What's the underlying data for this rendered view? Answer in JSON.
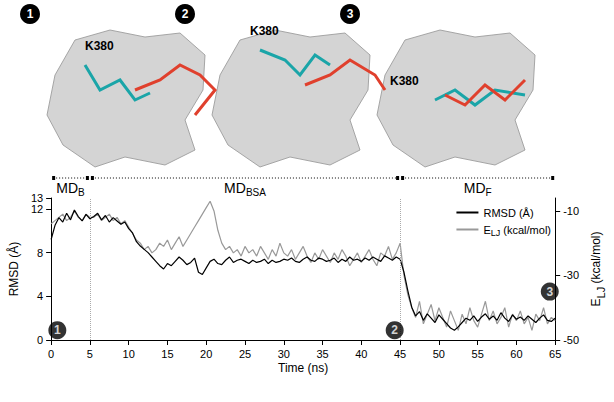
{
  "panels": [
    {
      "number": "1",
      "label": "K380"
    },
    {
      "number": "2",
      "label": "K380"
    },
    {
      "number": "3",
      "label": "K380"
    }
  ],
  "chart_data": {
    "type": "line",
    "xlabel": "Time (ns)",
    "ylabel": "RMSD (Å)",
    "y2label": {
      "text": "ELJ (kcal/mol)",
      "subscript": "LJ"
    },
    "x": [
      0,
      0.5,
      1,
      1.5,
      2,
      2.5,
      3,
      3.5,
      4,
      4.5,
      5,
      5.5,
      6,
      6.5,
      7,
      7.5,
      8,
      8.5,
      9,
      9.5,
      10,
      10.5,
      11,
      11.5,
      12,
      12.5,
      13,
      13.5,
      14,
      14.5,
      15,
      15.5,
      16,
      16.5,
      17,
      17.5,
      18,
      18.5,
      19,
      19.5,
      20,
      20.5,
      21,
      21.5,
      22,
      22.5,
      23,
      23.5,
      24,
      24.5,
      25,
      25.5,
      26,
      26.5,
      27,
      27.5,
      28,
      28.5,
      29,
      29.5,
      30,
      30.5,
      31,
      31.5,
      32,
      32.5,
      33,
      33.5,
      34,
      34.5,
      35,
      35.5,
      36,
      36.5,
      37,
      37.5,
      38,
      38.5,
      39,
      39.5,
      40,
      40.5,
      41,
      41.5,
      42,
      42.5,
      43,
      43.5,
      44,
      44.5,
      45,
      45.5,
      46,
      46.5,
      47,
      47.5,
      48,
      48.5,
      49,
      49.5,
      50,
      50.5,
      51,
      51.5,
      52,
      52.5,
      53,
      53.5,
      54,
      54.5,
      55,
      55.5,
      56,
      56.5,
      57,
      57.5,
      58,
      58.5,
      59,
      59.5,
      60,
      60.5,
      61,
      61.5,
      62,
      62.5,
      63,
      63.5,
      64,
      64.5,
      65
    ],
    "series": [
      {
        "name": "RMSD (Å)",
        "color": "#000000",
        "axis": "y",
        "values": [
          9.2,
          10.5,
          11.2,
          10.8,
          11.6,
          11.0,
          11.9,
          11.3,
          10.9,
          11.5,
          11.1,
          11.3,
          11.6,
          11.0,
          11.4,
          10.8,
          11.2,
          10.9,
          10.6,
          10.8,
          10.2,
          9.8,
          9.0,
          8.6,
          8.3,
          8.0,
          7.6,
          7.2,
          6.8,
          6.5,
          7.0,
          6.8,
          7.2,
          7.6,
          7.3,
          6.9,
          7.1,
          7.5,
          6.2,
          6.0,
          6.6,
          7.2,
          7.4,
          7.0,
          6.9,
          7.3,
          7.6,
          7.1,
          7.3,
          7.4,
          7.2,
          7.0,
          7.3,
          7.1,
          7.2,
          7.4,
          7.0,
          7.3,
          7.1,
          7.2,
          7.4,
          7.3,
          7.5,
          7.2,
          7.1,
          7.4,
          7.6,
          7.3,
          7.2,
          7.5,
          7.4,
          7.2,
          7.3,
          7.5,
          7.1,
          7.4,
          7.2,
          7.6,
          7.3,
          7.4,
          7.2,
          7.5,
          7.3,
          7.6,
          7.4,
          7.2,
          7.7,
          7.5,
          7.3,
          7.6,
          7.4,
          6.2,
          4.5,
          3.0,
          2.2,
          2.6,
          1.8,
          2.4,
          2.0,
          1.6,
          2.3,
          1.9,
          1.5,
          1.1,
          0.9,
          1.2,
          1.6,
          2.0,
          1.8,
          2.2,
          1.7,
          2.1,
          2.4,
          1.9,
          2.2,
          1.8,
          2.5,
          2.0,
          1.7,
          2.3,
          1.9,
          2.1,
          1.8,
          2.2,
          1.9,
          1.6,
          2.0,
          2.3,
          1.8,
          1.7,
          2.0
        ]
      },
      {
        "name": "ELJ (kcal/mol)",
        "subscript": "LJ",
        "color": "#999999",
        "axis": "y2",
        "values": [
          -14,
          -13,
          -12,
          -11,
          -13,
          -12,
          -10,
          -12,
          -13,
          -11,
          -12,
          -12,
          -11,
          -13,
          -12,
          -11,
          -13,
          -12,
          -14,
          -13,
          -15,
          -17,
          -19,
          -20,
          -22,
          -21,
          -23,
          -22,
          -20,
          -21,
          -19,
          -22,
          -20,
          -18,
          -21,
          -19,
          -17,
          -15,
          -13,
          -11,
          -9,
          -7,
          -10,
          -16,
          -20,
          -22,
          -21,
          -23,
          -22,
          -24,
          -21,
          -23,
          -22,
          -24,
          -21,
          -23,
          -25,
          -22,
          -24,
          -20,
          -23,
          -24,
          -22,
          -25,
          -23,
          -21,
          -24,
          -26,
          -23,
          -25,
          -22,
          -24,
          -26,
          -23,
          -25,
          -22,
          -24,
          -27,
          -25,
          -23,
          -26,
          -24,
          -22,
          -25,
          -27,
          -23,
          -24,
          -21,
          -25,
          -23,
          -20,
          -30,
          -36,
          -40,
          -43,
          -38,
          -45,
          -42,
          -39,
          -44,
          -40,
          -43,
          -46,
          -41,
          -44,
          -47,
          -42,
          -45,
          -40,
          -44,
          -46,
          -42,
          -38,
          -44,
          -41,
          -45,
          -43,
          -40,
          -46,
          -42,
          -44,
          -41,
          -45,
          -43,
          -47,
          -42,
          -44,
          -40,
          -45,
          -43,
          -44
        ]
      }
    ],
    "xlim": [
      0,
      65
    ],
    "xticks": [
      0,
      5,
      10,
      15,
      20,
      25,
      30,
      35,
      40,
      45,
      50,
      55,
      60,
      65
    ],
    "ylim": [
      0,
      13
    ],
    "yticks": [
      0,
      4,
      8,
      12
    ],
    "y2lim": [
      -50,
      -6
    ],
    "y2ticks": [
      -10,
      -30,
      -50
    ],
    "phases": [
      {
        "label": "MDB",
        "subscript": "B",
        "start": 0,
        "end": 5
      },
      {
        "label": "MDBSA",
        "subscript": "BSA",
        "start": 5,
        "end": 45
      },
      {
        "label": "MDF",
        "subscript": "F",
        "start": 45,
        "end": 65
      }
    ],
    "annotations": [
      {
        "text": "1",
        "x": 0.8,
        "y": 0.9,
        "axis": "y"
      },
      {
        "text": "2",
        "x": 44.3,
        "y": 0.9,
        "axis": "y"
      },
      {
        "text": "3",
        "x": 64.3,
        "y": -35,
        "axis": "y2"
      }
    ],
    "legend": "upper right",
    "grid": false
  }
}
